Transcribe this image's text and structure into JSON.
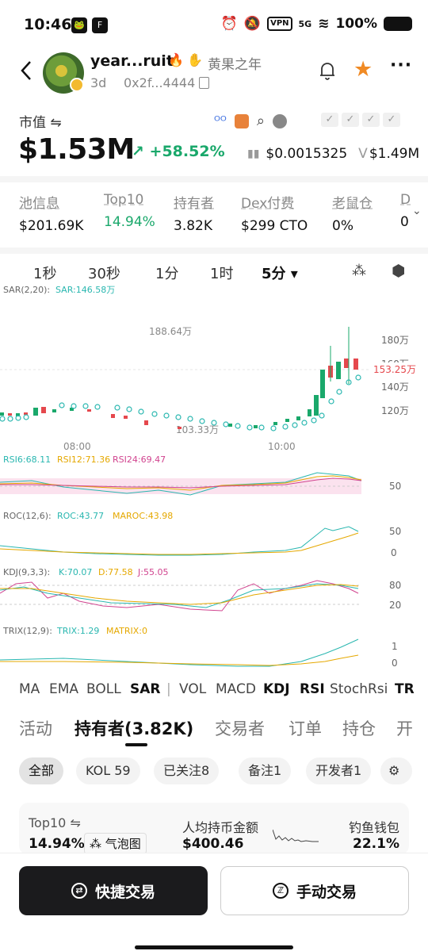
{
  "status_bar": {
    "time": "10:46",
    "vpn": "VPN",
    "battery": "100%",
    "signal": "5G"
  },
  "token": {
    "name": "year...ruit",
    "chinese_name": "黄果之年",
    "age": "3d",
    "address": "0x2f...4444"
  },
  "market": {
    "label": "市值",
    "value": "$1.53M",
    "change": "+58.52%",
    "price": "$0.0015325",
    "volume_prefix": "V",
    "volume": "$1.49M"
  },
  "stats": [
    {
      "label": "池信息",
      "value": "$201.69K"
    },
    {
      "label": "Top10",
      "value": "14.94%"
    },
    {
      "label": "持有者",
      "value": "3.82K"
    },
    {
      "label": "Dex付费",
      "value": "$299 CTO"
    },
    {
      "label": "老鼠仓",
      "value": "0%"
    },
    {
      "label": "D",
      "value": "0"
    }
  ],
  "timeframes": [
    "1秒",
    "30秒",
    "1分",
    "1时",
    "5分 ▾"
  ],
  "indicators": {
    "sar": {
      "name": "SAR(2,20):",
      "value": "SAR:146.58万"
    },
    "rsi": {
      "rsi6": "RSI6:68.11",
      "rsi12": "RSI12:71.36",
      "rsi24": "RSI24:69.47"
    },
    "roc": {
      "name": "ROC(12,6):",
      "roc": "ROC:43.77",
      "maroc": "MAROC:43.98"
    },
    "kdj": {
      "name": "KDJ(9,3,3):",
      "k": "K:70.07",
      "d": "D:77.58",
      "j": "J:55.05"
    },
    "trix": {
      "name": "TRIX(12,9):",
      "trix": "TRIX:1.29",
      "matrix": "MATRIX:0"
    }
  },
  "price_axis": {
    "high_label": "188.64万",
    "low_label": "103.33万",
    "current": "153.25万",
    "ticks": [
      "180万",
      "160万",
      "140万",
      "120万"
    ],
    "time_ticks": [
      "08:00",
      "10:00"
    ],
    "rsi_tick": "50",
    "roc_ticks": [
      "50",
      "0"
    ],
    "kdj_ticks": [
      "80",
      "20"
    ],
    "trix_ticks": [
      "1",
      "0"
    ]
  },
  "indicator_tabs": [
    "MA",
    "EMA",
    "BOLL",
    "SAR",
    "|",
    "VOL",
    "MACD",
    "KDJ",
    "RSI",
    "StochRsi",
    "TR"
  ],
  "holder_tabs": [
    "活动",
    "持有者(3.82K)",
    "交易者",
    "订单",
    "持仓",
    "开"
  ],
  "filters": [
    "全部",
    "KOL 59",
    "已关注8",
    "备注1",
    "开发者1"
  ],
  "summary": {
    "top10_label": "Top10",
    "top10_value": "14.94%",
    "bubble_label": "气泡图",
    "avg_label": "人均持币金额",
    "avg_value": "$400.46",
    "phish_label": "钓鱼钱包",
    "phish_value": "22.1%"
  },
  "buttons": {
    "quick": "快捷交易",
    "manual": "手动交易"
  },
  "colors": {
    "up": "#1aa86b",
    "down": "#e5484d",
    "accent": "#f08a24"
  }
}
